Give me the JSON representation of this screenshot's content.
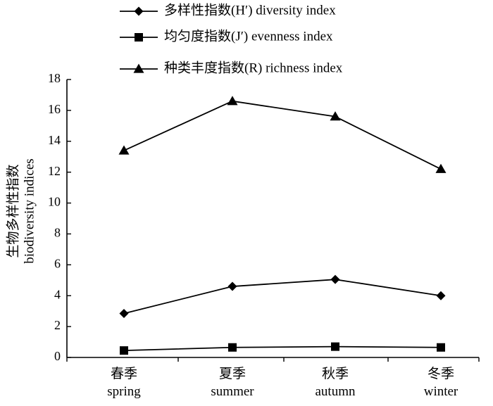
{
  "chart_data": {
    "type": "line",
    "categories": [
      {
        "zh": "春季",
        "en": "spring"
      },
      {
        "zh": "夏季",
        "en": "summer"
      },
      {
        "zh": "秋季",
        "en": "autumn"
      },
      {
        "zh": "冬季",
        "en": "winter"
      }
    ],
    "series": [
      {
        "name": "多样性指数(H′)   diversity index",
        "marker": "diamond",
        "values": [
          2.85,
          4.6,
          5.05,
          4.0
        ]
      },
      {
        "name": "均匀度指数(J′) evenness index",
        "marker": "square",
        "values": [
          0.45,
          0.65,
          0.7,
          0.65
        ]
      },
      {
        "name": "种类丰度指数(R)   richness index",
        "marker": "triangle",
        "values": [
          13.4,
          16.6,
          15.6,
          12.2
        ]
      }
    ],
    "ylabel_zh": "生物多样性指数",
    "ylabel_en": "biodiversity indices",
    "ylim": [
      0,
      18
    ],
    "yticks": [
      0,
      2,
      4,
      6,
      8,
      10,
      12,
      14,
      16,
      18
    ],
    "grid": false,
    "legend_position": "top",
    "color": "#000000"
  }
}
